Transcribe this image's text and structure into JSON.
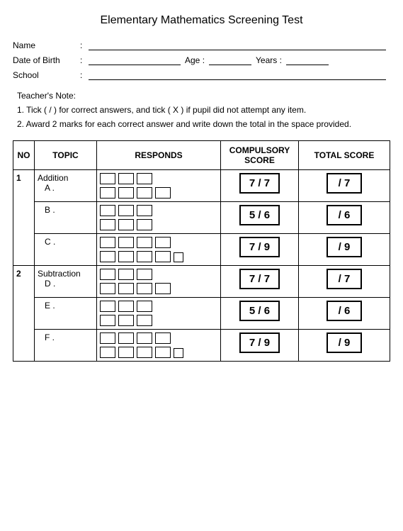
{
  "title": "Elementary  Mathematics Screening Test",
  "info": {
    "name_label": "Name",
    "dob_label": "Date of Birth",
    "age_label": "Age",
    "years_label": "Years :",
    "school_label": "School"
  },
  "notes": {
    "heading": "Teacher's Note:",
    "item1": "1. Tick ( / ) for correct answers, and tick ( X ) if pupil did not attempt any item.",
    "item2": "2. Award 2 marks for each correct answer and write down the total in the space provided."
  },
  "headers": {
    "no": "NO",
    "topic": "TOPIC",
    "responds": "RESPONDS",
    "compulsory": "COMPULSORY SCORE",
    "total": "TOTAL SCORE"
  },
  "rows": [
    {
      "no": "1",
      "topic": "Addition",
      "subs": [
        {
          "label": "A .",
          "row1": 3,
          "row2": 4,
          "trail_small": false,
          "comp_score": "7 / 7",
          "total": "/ 7"
        },
        {
          "label": "B .",
          "row1": 3,
          "row2": 3,
          "trail_small": false,
          "comp_score": "5 / 6",
          "total": "/ 6"
        },
        {
          "label": "C .",
          "row1": 4,
          "row2": 4,
          "trail_small": true,
          "comp_score": "7 / 9",
          "total": "/ 9"
        }
      ]
    },
    {
      "no": "2",
      "topic": "Subtraction",
      "subs": [
        {
          "label": "D .",
          "row1": 3,
          "row2": 4,
          "trail_small": false,
          "comp_score": "7 / 7",
          "total": "/ 7"
        },
        {
          "label": "E .",
          "row1": 3,
          "row2": 3,
          "trail_small": false,
          "comp_score": "5 / 6",
          "total": "/ 6"
        },
        {
          "label": "F .",
          "row1": 4,
          "row2": 4,
          "trail_small": true,
          "comp_score": "7 / 9",
          "total": "/ 9"
        }
      ]
    }
  ]
}
